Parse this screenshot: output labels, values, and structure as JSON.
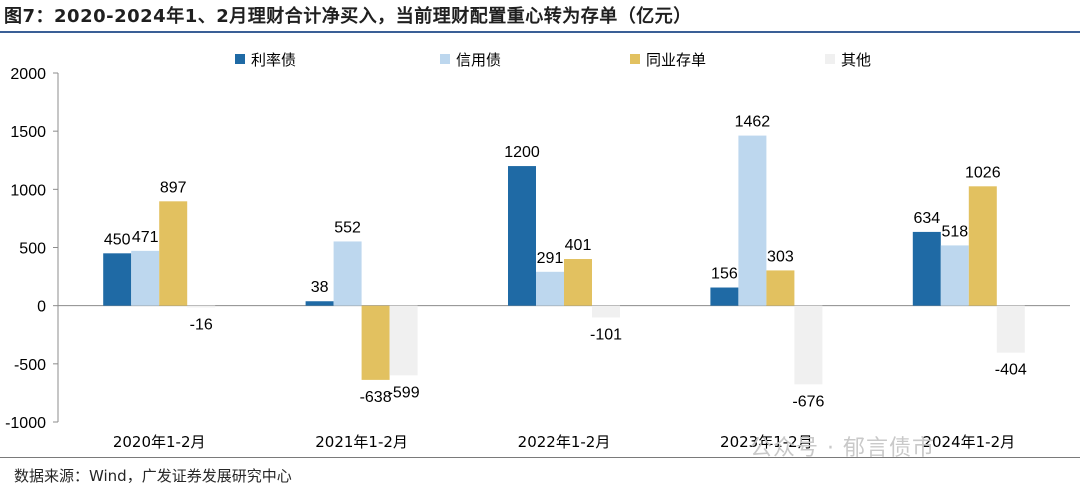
{
  "title": "图7：2020-2024年1、2月理财合计净买入，当前理财配置重心转为存单（亿元）",
  "source": "数据来源：Wind，广发证券发展研究中心",
  "watermark": "公众号 · 郁言债市",
  "chart_data": {
    "type": "bar",
    "categories": [
      "2020年1-2月",
      "2021年1-2月",
      "2022年1-2月",
      "2023年1-2月",
      "2024年1-2月"
    ],
    "series": [
      {
        "name": "利率债",
        "color": "#1f6aa5",
        "values": [
          450,
          38,
          1200,
          156,
          634
        ]
      },
      {
        "name": "信用债",
        "color": "#bdd7ee",
        "values": [
          471,
          552,
          291,
          1462,
          518
        ]
      },
      {
        "name": "同业存单",
        "color": "#e2c160",
        "values": [
          897,
          -638,
          401,
          303,
          1026
        ]
      },
      {
        "name": "其他",
        "color": "#f0f0f0",
        "values": [
          -16,
          -599,
          -101,
          -676,
          -404
        ]
      }
    ],
    "ylim": [
      -1000,
      2000
    ],
    "yticks": [
      2000,
      1500,
      1000,
      500,
      0,
      -500,
      -1000
    ],
    "xlabel": "",
    "ylabel": "",
    "grid": false,
    "legend_position": "top"
  }
}
